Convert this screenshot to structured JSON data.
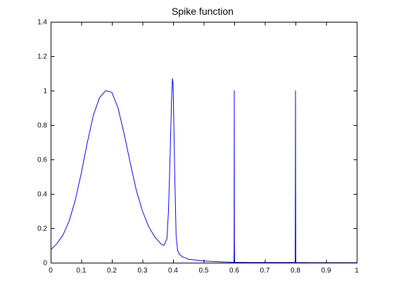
{
  "chart_data": {
    "type": "line",
    "title": "Spike function",
    "xlabel": "",
    "ylabel": "",
    "xlim": [
      0,
      1
    ],
    "ylim": [
      0,
      1.4
    ],
    "x_ticks": [
      "0",
      "0.1",
      "0.2",
      "0.3",
      "0.4",
      "0.5",
      "0.6",
      "0.7",
      "0.8",
      "0.9",
      "1"
    ],
    "y_ticks": [
      "0",
      "0.2",
      "0.4",
      "0.6",
      "0.8",
      "1",
      "1.2",
      "1.4"
    ],
    "grid": false,
    "legend": "none",
    "series": [
      {
        "color": "#0000ff",
        "x": [
          0,
          0.02,
          0.04,
          0.06,
          0.08,
          0.1,
          0.12,
          0.14,
          0.16,
          0.18,
          0.2,
          0.22,
          0.24,
          0.26,
          0.28,
          0.3,
          0.32,
          0.34,
          0.36,
          0.37,
          0.38,
          0.385,
          0.39,
          0.395,
          0.398,
          0.4,
          0.402,
          0.405,
          0.41,
          0.415,
          0.42,
          0.43,
          0.45,
          0.5,
          0.55,
          0.599,
          0.5995,
          0.6,
          0.6005,
          0.601,
          0.65,
          0.7,
          0.75,
          0.799,
          0.7995,
          0.8,
          0.8005,
          0.801,
          0.85,
          0.9,
          0.95,
          1.0
        ],
        "y": [
          0.075,
          0.11,
          0.16,
          0.24,
          0.36,
          0.52,
          0.7,
          0.86,
          0.96,
          1.0,
          0.99,
          0.9,
          0.75,
          0.58,
          0.42,
          0.3,
          0.21,
          0.15,
          0.11,
          0.1,
          0.14,
          0.3,
          0.6,
          0.95,
          1.07,
          1.04,
          0.85,
          0.55,
          0.15,
          0.07,
          0.05,
          0.035,
          0.02,
          0.01,
          0.005,
          0.002,
          0.13,
          1.0,
          0.13,
          0.002,
          0.001,
          0.001,
          0.001,
          0.001,
          0.43,
          1.0,
          0.43,
          0.001,
          0.0,
          0.0,
          0.0,
          0.0
        ]
      }
    ]
  }
}
